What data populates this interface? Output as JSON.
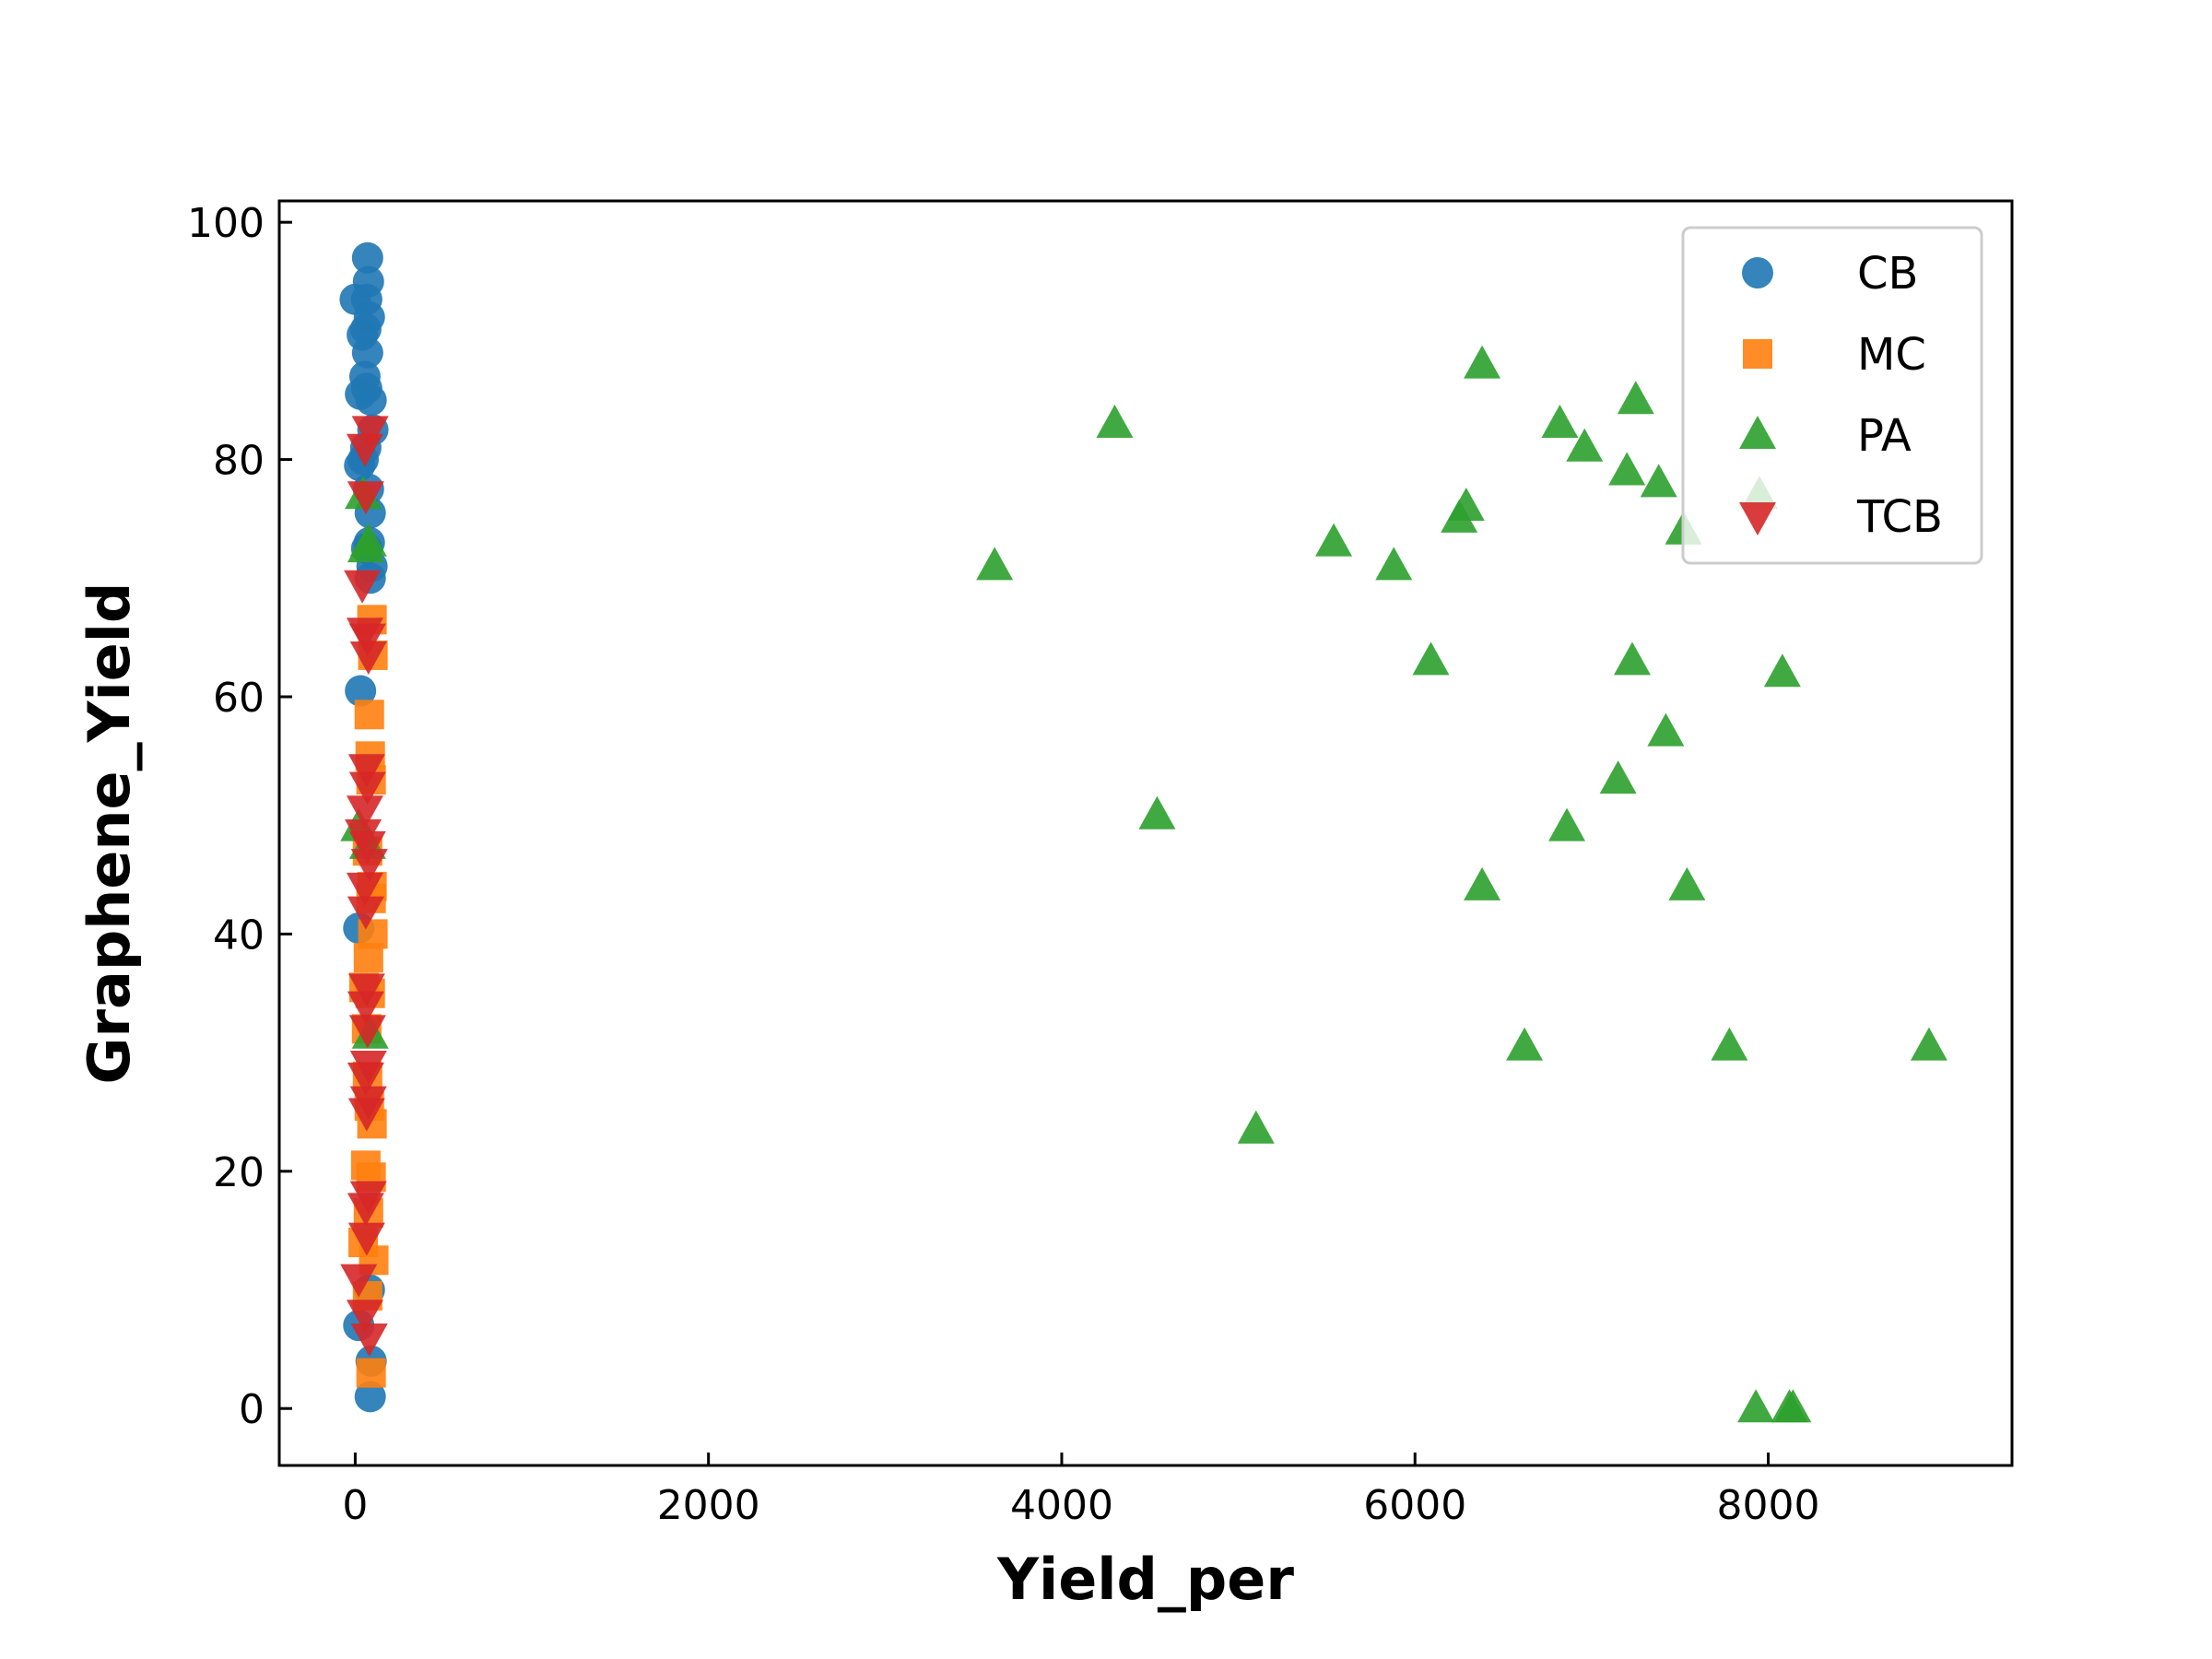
{
  "chart_data": {
    "type": "scatter",
    "title": "",
    "xlabel": "Yield_per",
    "ylabel": "Graphene_Yield",
    "xlim": [
      -430,
      9380
    ],
    "ylim": [
      -4.8,
      101.8
    ],
    "xticks": [
      0,
      2000,
      4000,
      6000,
      8000
    ],
    "xtick_labels": [
      "0",
      "2000",
      "4000",
      "6000",
      "8000"
    ],
    "yticks": [
      0,
      20,
      40,
      60,
      80,
      100
    ],
    "ytick_labels": [
      "0",
      "20",
      "40",
      "60",
      "80",
      "100"
    ],
    "grid": false,
    "legend_position": "top-right",
    "series": [
      {
        "name": "CB",
        "marker": "circle",
        "color": "#1f77b4",
        "points": [
          [
            70,
            97
          ],
          [
            75,
            95
          ],
          [
            65,
            93.5
          ],
          [
            0,
            93.5
          ],
          [
            80,
            92
          ],
          [
            60,
            91
          ],
          [
            40,
            90.5
          ],
          [
            70,
            89
          ],
          [
            55,
            87
          ],
          [
            65,
            86
          ],
          [
            30,
            85.5
          ],
          [
            90,
            85
          ],
          [
            100,
            82.5
          ],
          [
            60,
            81
          ],
          [
            45,
            80
          ],
          [
            25,
            79.5
          ],
          [
            75,
            77.5
          ],
          [
            85,
            75.5
          ],
          [
            80,
            73
          ],
          [
            65,
            72.5
          ],
          [
            95,
            71
          ],
          [
            85,
            70
          ],
          [
            30,
            60.5
          ],
          [
            20,
            40.5
          ],
          [
            80,
            10
          ],
          [
            20,
            7
          ],
          [
            90,
            4
          ],
          [
            85,
            1
          ]
        ]
      },
      {
        "name": "MC",
        "marker": "square",
        "color": "#ff7f0e",
        "points": [
          [
            95,
            66.5
          ],
          [
            100,
            63.5
          ],
          [
            80,
            58.5
          ],
          [
            85,
            55
          ],
          [
            90,
            53
          ],
          [
            70,
            47
          ],
          [
            95,
            44
          ],
          [
            90,
            43
          ],
          [
            100,
            40
          ],
          [
            75,
            38
          ],
          [
            50,
            35.5
          ],
          [
            85,
            35
          ],
          [
            65,
            32
          ],
          [
            70,
            28
          ],
          [
            80,
            25.5
          ],
          [
            95,
            24
          ],
          [
            60,
            20.5
          ],
          [
            90,
            19.5
          ],
          [
            75,
            16.5
          ],
          [
            45,
            14
          ],
          [
            105,
            12.5
          ],
          [
            70,
            9.5
          ],
          [
            90,
            3
          ]
        ]
      },
      {
        "name": "PA",
        "marker": "triangle-up",
        "color": "#2ca02c",
        "points": [
          [
            3620,
            71
          ],
          [
            4300,
            83
          ],
          [
            4540,
            50
          ],
          [
            5100,
            23.5
          ],
          [
            5540,
            73
          ],
          [
            5880,
            71
          ],
          [
            6090,
            63
          ],
          [
            6250,
            75
          ],
          [
            6290,
            76
          ],
          [
            6380,
            88
          ],
          [
            6380,
            44
          ],
          [
            6620,
            30.5
          ],
          [
            6820,
            83
          ],
          [
            6860,
            49
          ],
          [
            6960,
            81
          ],
          [
            7150,
            53
          ],
          [
            7200,
            79
          ],
          [
            7230,
            63
          ],
          [
            7250,
            85
          ],
          [
            7380,
            78
          ],
          [
            7420,
            57
          ],
          [
            7520,
            74
          ],
          [
            7540,
            44
          ],
          [
            7780,
            30.5
          ],
          [
            7930,
            0
          ],
          [
            7950,
            77
          ],
          [
            8080,
            62
          ],
          [
            8120,
            0
          ],
          [
            8140,
            0
          ],
          [
            8910,
            30.5
          ],
          [
            45,
            77
          ],
          [
            75,
            73
          ],
          [
            60,
            72.5
          ],
          [
            20,
            49
          ],
          [
            70,
            47.5
          ],
          [
            85,
            31.5
          ]
        ]
      },
      {
        "name": "TCB",
        "marker": "triangle-down",
        "color": "#d62728",
        "points": [
          [
            85,
            82.5
          ],
          [
            55,
            81
          ],
          [
            60,
            77
          ],
          [
            40,
            69.5
          ],
          [
            55,
            65.5
          ],
          [
            70,
            65
          ],
          [
            75,
            63.5
          ],
          [
            65,
            54
          ],
          [
            70,
            52.5
          ],
          [
            55,
            50.5
          ],
          [
            45,
            48.5
          ],
          [
            70,
            47.5
          ],
          [
            80,
            46
          ],
          [
            55,
            44
          ],
          [
            60,
            42
          ],
          [
            65,
            35.5
          ],
          [
            60,
            34
          ],
          [
            70,
            32
          ],
          [
            75,
            29
          ],
          [
            60,
            28
          ],
          [
            75,
            26
          ],
          [
            65,
            25
          ],
          [
            75,
            18
          ],
          [
            60,
            17
          ],
          [
            65,
            14.5
          ],
          [
            20,
            11
          ],
          [
            55,
            8
          ],
          [
            80,
            6
          ]
        ]
      }
    ]
  }
}
